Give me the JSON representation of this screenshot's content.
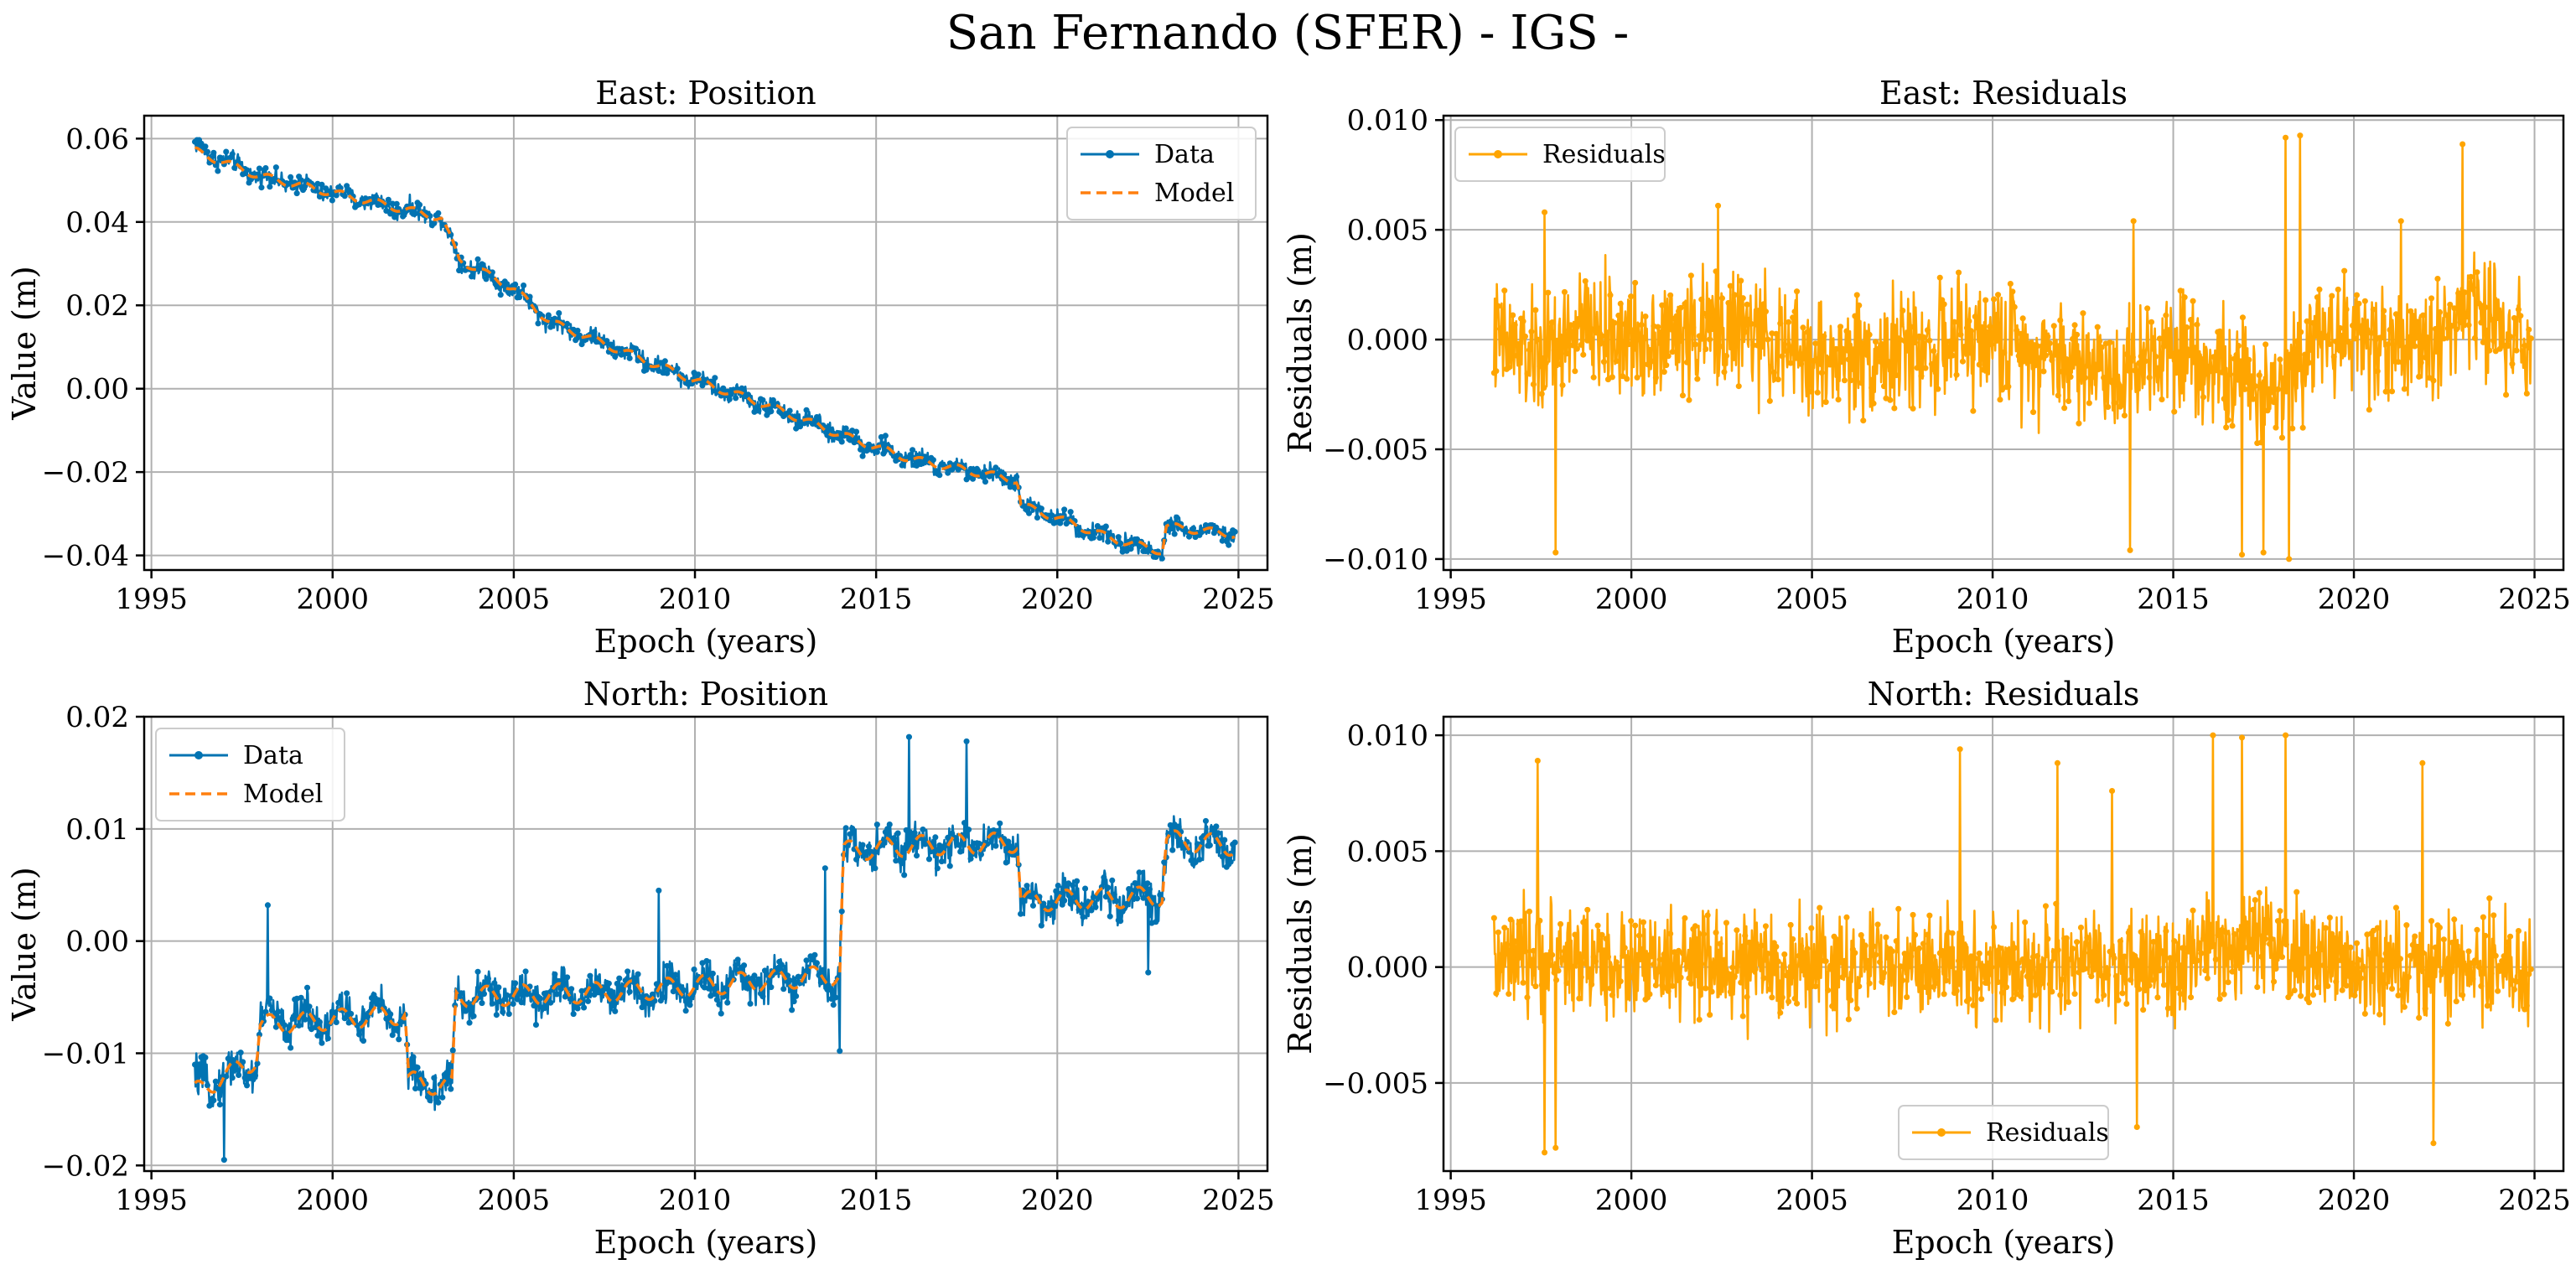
{
  "figure_title": "San Fernando (SFER) - IGS -",
  "colors": {
    "data": "#0173b2",
    "model": "#ff7f0e",
    "residuals": "#ffa500",
    "grid": "#b0b0b0"
  },
  "chart_data": [
    {
      "id": "east-position",
      "type": "line",
      "title": "East: Position",
      "xlabel": "Epoch (years)",
      "ylabel": "Value (m)",
      "xlim": [
        1994.8,
        2025.8
      ],
      "ylim": [
        -0.0435,
        0.0655
      ],
      "xticks": [
        1995,
        2000,
        2005,
        2010,
        2015,
        2020,
        2025
      ],
      "xtick_labels": [
        "1995",
        "2000",
        "2005",
        "2010",
        "2015",
        "2020",
        "2025"
      ],
      "yticks": [
        -0.04,
        -0.02,
        0.0,
        0.02,
        0.04,
        0.06
      ],
      "ytick_labels": [
        "−0.04",
        "−0.02",
        "0.00",
        "0.02",
        "0.04",
        "0.06"
      ],
      "grid": true,
      "legend_position": "top-right",
      "legend": [
        "Data",
        "Model"
      ],
      "series": [
        {
          "name": "Data",
          "style": "solid-markers",
          "noise": 0.0018,
          "x": [
            1996.2,
            1998.0,
            2000.0,
            2002.0,
            2003.0,
            2003.5,
            2005.0,
            2006.0,
            2008.0,
            2010.0,
            2012.0,
            2014.0,
            2016.0,
            2018.9,
            2019.0,
            2020.0,
            2021.5,
            2022.9,
            2023.0,
            2024.9
          ],
          "values": [
            0.058,
            0.051,
            0.047,
            0.043,
            0.041,
            0.031,
            0.024,
            0.016,
            0.009,
            0.002,
            -0.004,
            -0.011,
            -0.017,
            -0.022,
            -0.028,
            -0.031,
            -0.036,
            -0.039,
            -0.033,
            -0.035
          ]
        },
        {
          "name": "Model",
          "style": "dashed",
          "x": [
            1996.2,
            1998.0,
            2000.0,
            2002.0,
            2003.0,
            2003.5,
            2005.0,
            2006.0,
            2008.0,
            2010.0,
            2012.0,
            2014.0,
            2016.0,
            2018.9,
            2019.0,
            2020.0,
            2021.5,
            2022.9,
            2023.0,
            2024.9
          ],
          "values": [
            0.057,
            0.051,
            0.047,
            0.043,
            0.041,
            0.031,
            0.024,
            0.016,
            0.009,
            0.002,
            -0.004,
            -0.011,
            -0.017,
            -0.022,
            -0.028,
            -0.031,
            -0.036,
            -0.039,
            -0.033,
            -0.035
          ]
        }
      ]
    },
    {
      "id": "east-residuals",
      "type": "line",
      "title": "East: Residuals",
      "xlabel": "Epoch (years)",
      "ylabel": "Residuals (m)",
      "xlim": [
        1994.8,
        2025.8
      ],
      "ylim": [
        -0.0105,
        0.0102
      ],
      "xticks": [
        1995,
        2000,
        2005,
        2010,
        2015,
        2020,
        2025
      ],
      "xtick_labels": [
        "1995",
        "2000",
        "2005",
        "2010",
        "2015",
        "2020",
        "2025"
      ],
      "yticks": [
        -0.01,
        -0.005,
        0.0,
        0.005,
        0.01
      ],
      "ytick_labels": [
        "−0.010",
        "−0.005",
        "0.000",
        "0.005",
        "0.010"
      ],
      "grid": true,
      "legend_position": "top-left",
      "legend": [
        "Residuals"
      ],
      "series": [
        {
          "name": "Residuals",
          "style": "solid-markers",
          "noise": 0.0022,
          "x": [
            1996.2,
            1997.5,
            1998.5,
            2000.0,
            2003.0,
            2005.0,
            2010.0,
            2013.5,
            2015.0,
            2017.0,
            2018.0,
            2019.0,
            2022.0,
            2023.0,
            2024.9
          ],
          "values": [
            0.0,
            -0.001,
            0.0005,
            0.0,
            0.0005,
            -0.001,
            0.0,
            -0.0015,
            0.0,
            -0.002,
            -0.002,
            0.0005,
            -0.0005,
            0.0015,
            0.0
          ],
          "spikes": [
            [
              1997.9,
              -0.0097
            ],
            [
              1997.6,
              0.0058
            ],
            [
              2002.4,
              0.0061
            ],
            [
              2013.8,
              -0.0096
            ],
            [
              2013.9,
              0.0054
            ],
            [
              2016.9,
              -0.0098
            ],
            [
              2017.5,
              -0.0097
            ],
            [
              2018.1,
              0.0092
            ],
            [
              2018.5,
              0.0093
            ],
            [
              2018.2,
              -0.01
            ],
            [
              2023.0,
              0.0089
            ],
            [
              2021.3,
              0.0054
            ]
          ]
        }
      ]
    },
    {
      "id": "north-position",
      "type": "line",
      "title": "North: Position",
      "xlabel": "Epoch (years)",
      "ylabel": "Value (m)",
      "xlim": [
        1994.8,
        2025.8
      ],
      "ylim": [
        -0.0205,
        0.02
      ],
      "xticks": [
        1995,
        2000,
        2005,
        2010,
        2015,
        2020,
        2025
      ],
      "xtick_labels": [
        "1995",
        "2000",
        "2005",
        "2010",
        "2015",
        "2020",
        "2025"
      ],
      "yticks": [
        -0.02,
        -0.01,
        0.0,
        0.01,
        0.02
      ],
      "ytick_labels": [
        "−0.02",
        "−0.01",
        "0.00",
        "0.01",
        "0.02"
      ],
      "grid": true,
      "legend_position": "top-left",
      "legend": [
        "Data",
        "Model"
      ],
      "series": [
        {
          "name": "Data",
          "style": "solid-markers",
          "noise": 0.0014,
          "x": [
            1996.2,
            1997.9,
            1998.0,
            2002.0,
            2002.1,
            2003.3,
            2003.4,
            2008.0,
            2014.0,
            2014.1,
            2016.0,
            2018.9,
            2019.0,
            2022.9,
            2023.0,
            2024.9
          ],
          "values": [
            -0.013,
            -0.011,
            -0.007,
            -0.0065,
            -0.0125,
            -0.013,
            -0.005,
            -0.0045,
            -0.003,
            0.0082,
            0.0085,
            0.0088,
            0.0035,
            0.004,
            0.009,
            0.0085
          ],
          "spikes": [
            [
              1998.2,
              0.0032
            ],
            [
              2009.0,
              0.0045
            ],
            [
              2013.6,
              0.0065
            ],
            [
              2015.9,
              0.0182
            ],
            [
              2017.5,
              0.0178
            ],
            [
              2014.0,
              -0.0098
            ],
            [
              1997.0,
              -0.0195
            ],
            [
              2022.5,
              -0.0028
            ]
          ]
        },
        {
          "name": "Model",
          "style": "dashed",
          "x": [
            1996.2,
            1997.9,
            1998.0,
            2002.0,
            2002.1,
            2003.3,
            2003.4,
            2008.0,
            2014.0,
            2014.1,
            2016.0,
            2018.9,
            2019.0,
            2022.9,
            2023.0,
            2024.9
          ],
          "values": [
            -0.0135,
            -0.0105,
            -0.0075,
            -0.0065,
            -0.0125,
            -0.013,
            -0.005,
            -0.0045,
            -0.003,
            0.008,
            0.0085,
            0.0088,
            0.0035,
            0.004,
            0.009,
            0.0085
          ]
        }
      ]
    },
    {
      "id": "north-residuals",
      "type": "line",
      "title": "North: Residuals",
      "xlabel": "Epoch (years)",
      "ylabel": "Residuals (m)",
      "xlim": [
        1994.8,
        2025.8
      ],
      "ylim": [
        -0.0088,
        0.0108
      ],
      "xticks": [
        1995,
        2000,
        2005,
        2010,
        2015,
        2020,
        2025
      ],
      "xtick_labels": [
        "1995",
        "2000",
        "2005",
        "2010",
        "2015",
        "2020",
        "2025"
      ],
      "yticks": [
        -0.005,
        0.0,
        0.005,
        0.01
      ],
      "ytick_labels": [
        "−0.005",
        "0.000",
        "0.005",
        "0.010"
      ],
      "grid": true,
      "legend_position": "bottom-center",
      "legend": [
        "Residuals"
      ],
      "series": [
        {
          "name": "Residuals",
          "style": "solid-markers",
          "noise": 0.0019,
          "x": [
            1996.2,
            1998.0,
            2000.0,
            2005.0,
            2010.0,
            2015.0,
            2016.5,
            2018.5,
            2020.0,
            2024.9
          ],
          "values": [
            0.0,
            0.0005,
            0.0,
            0.0,
            0.0,
            0.0,
            0.001,
            0.0005,
            0.0,
            0.0
          ],
          "spikes": [
            [
              1997.4,
              0.0089
            ],
            [
              1997.9,
              -0.0078
            ],
            [
              1997.6,
              -0.008
            ],
            [
              2009.1,
              0.0094
            ],
            [
              2011.8,
              0.0088
            ],
            [
              2013.3,
              0.0076
            ],
            [
              2014.0,
              -0.0069
            ],
            [
              2016.1,
              0.01
            ],
            [
              2016.9,
              0.0099
            ],
            [
              2018.1,
              0.01
            ],
            [
              2021.9,
              0.0088
            ],
            [
              2022.2,
              -0.0076
            ]
          ]
        }
      ]
    }
  ]
}
